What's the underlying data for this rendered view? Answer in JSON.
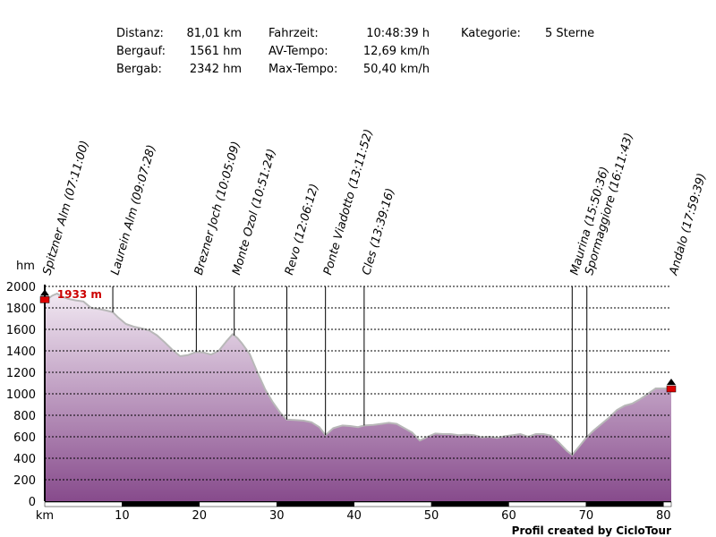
{
  "stats": {
    "distance_label": "Distanz:",
    "distance_value": "81,01 km",
    "ascent_label": "Bergauf:",
    "ascent_value": "1561 hm",
    "descent_label": "Bergab:",
    "descent_value": "2342 hm",
    "time_label": "Fahrzeit:",
    "time_value": "10:48:39 h",
    "avg_label": "AV-Tempo:",
    "avg_value": "12,69 km/h",
    "max_label": "Max-Tempo:",
    "max_value": "50,40 km/h",
    "category_label": "Kategorie:",
    "category_value": "5 Sterne"
  },
  "chart_data": {
    "type": "area",
    "xlabel": "km",
    "ylabel": "hm",
    "xlim": [
      0,
      81.01
    ],
    "ylim": [
      0,
      2000
    ],
    "xticks": [
      10,
      20,
      30,
      40,
      50,
      60,
      70,
      80
    ],
    "yticks": [
      0,
      200,
      400,
      600,
      800,
      1000,
      1200,
      1400,
      1600,
      1800,
      2000
    ],
    "grid": true,
    "colors": {
      "fill_top": "#f1e8f2",
      "fill_bottom": "#874b8c",
      "line": "#b8b8b8",
      "max_label": "#cc0000",
      "marker": "#dd0000"
    },
    "max_annotation": {
      "x": 1.6,
      "y": 1933,
      "label": "1933 m"
    },
    "profile": [
      [
        0,
        1880
      ],
      [
        0.5,
        1890
      ],
      [
        1,
        1915
      ],
      [
        1.6,
        1933
      ],
      [
        2.2,
        1905
      ],
      [
        3,
        1885
      ],
      [
        4,
        1870
      ],
      [
        5,
        1860
      ],
      [
        6,
        1800
      ],
      [
        7,
        1790
      ],
      [
        8,
        1775
      ],
      [
        8.8,
        1760
      ],
      [
        9.5,
        1710
      ],
      [
        10.5,
        1650
      ],
      [
        11.5,
        1625
      ],
      [
        12.5,
        1610
      ],
      [
        13.5,
        1590
      ],
      [
        14.5,
        1545
      ],
      [
        15.5,
        1480
      ],
      [
        16.5,
        1410
      ],
      [
        17.5,
        1350
      ],
      [
        18.5,
        1360
      ],
      [
        19.6,
        1390
      ],
      [
        20.5,
        1385
      ],
      [
        21.5,
        1365
      ],
      [
        22.5,
        1400
      ],
      [
        23.5,
        1490
      ],
      [
        24.3,
        1555
      ],
      [
        24.9,
        1520
      ],
      [
        25.5,
        1470
      ],
      [
        26.5,
        1370
      ],
      [
        27.5,
        1200
      ],
      [
        28.5,
        1040
      ],
      [
        29.5,
        920
      ],
      [
        30.5,
        820
      ],
      [
        31.3,
        760
      ],
      [
        32.5,
        755
      ],
      [
        33.5,
        750
      ],
      [
        34.5,
        735
      ],
      [
        35.5,
        690
      ],
      [
        36.3,
        615
      ],
      [
        37.3,
        680
      ],
      [
        38.5,
        705
      ],
      [
        39.5,
        700
      ],
      [
        40.5,
        690
      ],
      [
        41.3,
        705
      ],
      [
        42.5,
        710
      ],
      [
        43.5,
        720
      ],
      [
        44.5,
        730
      ],
      [
        45.5,
        720
      ],
      [
        46.5,
        680
      ],
      [
        47.5,
        640
      ],
      [
        48.5,
        565
      ],
      [
        49.5,
        600
      ],
      [
        50.5,
        630
      ],
      [
        51.5,
        625
      ],
      [
        52.5,
        625
      ],
      [
        53.5,
        615
      ],
      [
        54.5,
        620
      ],
      [
        55.5,
        615
      ],
      [
        56.5,
        595
      ],
      [
        57.5,
        600
      ],
      [
        58.5,
        590
      ],
      [
        59.5,
        605
      ],
      [
        60.5,
        615
      ],
      [
        61.5,
        625
      ],
      [
        62.5,
        600
      ],
      [
        63.5,
        625
      ],
      [
        64.5,
        625
      ],
      [
        65.5,
        610
      ],
      [
        66.5,
        545
      ],
      [
        67.5,
        470
      ],
      [
        68.2,
        430
      ],
      [
        69,
        500
      ],
      [
        70,
        590
      ],
      [
        71,
        660
      ],
      [
        72,
        720
      ],
      [
        73,
        780
      ],
      [
        74,
        850
      ],
      [
        75,
        890
      ],
      [
        76,
        910
      ],
      [
        77,
        950
      ],
      [
        78,
        1000
      ],
      [
        79,
        1050
      ],
      [
        80,
        1050
      ],
      [
        81.01,
        1050
      ]
    ],
    "waypoints": [
      {
        "km": 0,
        "label": "Spitzner Alm (07:11:00)"
      },
      {
        "km": 8.8,
        "label": "Laurein Alm (09:07:28)"
      },
      {
        "km": 19.6,
        "label": "Brezner Joch (10:05:09)"
      },
      {
        "km": 24.5,
        "label": "Monte Ozol (10:51:24)"
      },
      {
        "km": 31.3,
        "label": "Revo (12:06:12)"
      },
      {
        "km": 36.3,
        "label": "Ponte Viadotto (13:11:52)"
      },
      {
        "km": 41.3,
        "label": "Cles (13:39:16)"
      },
      {
        "km": 68.2,
        "label": "Maurina (15:50:36)"
      },
      {
        "km": 70.1,
        "label": "Spormaggiore (16:11:43)"
      },
      {
        "km": 81.01,
        "label": "Andalo (17:59:39)"
      }
    ]
  },
  "credit": "Profil created by CicloTour"
}
